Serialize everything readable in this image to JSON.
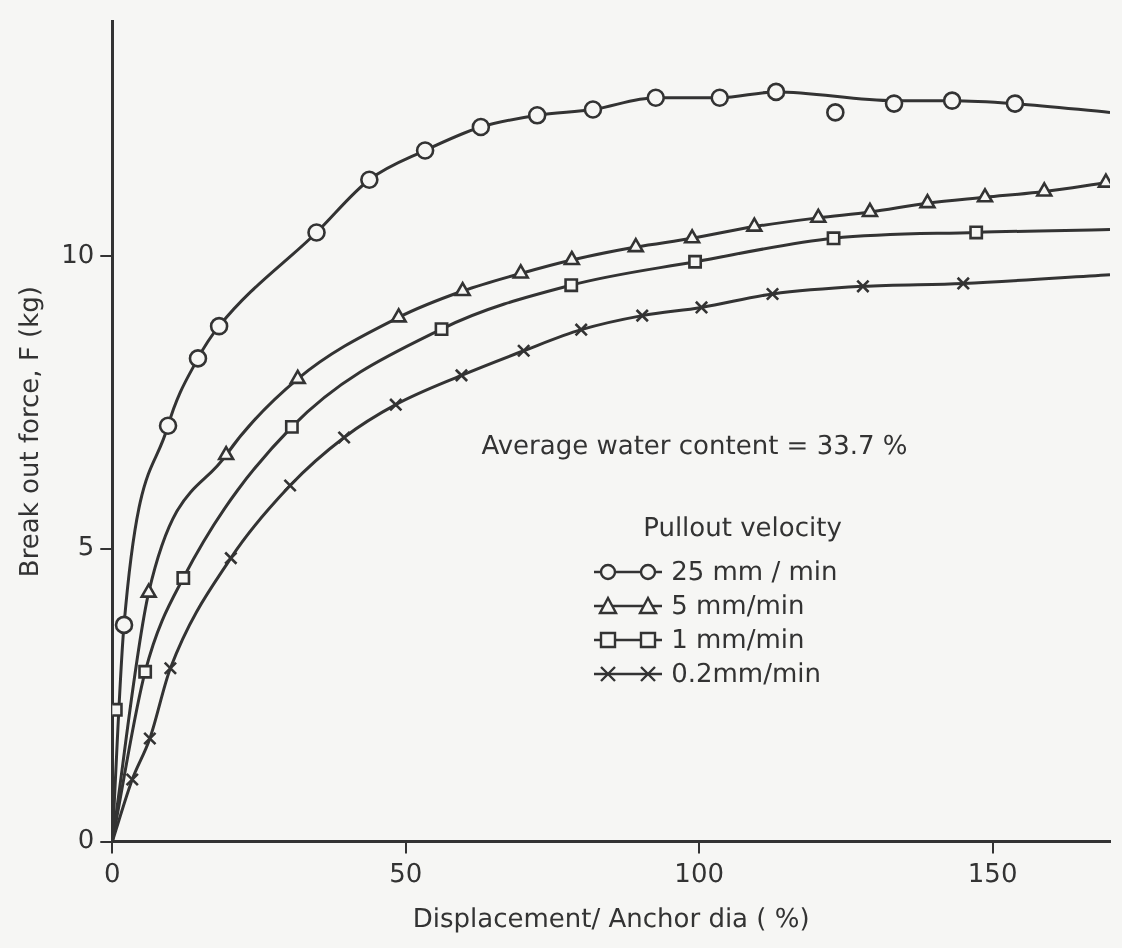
{
  "chart_data": {
    "type": "scatter",
    "xlabel": "Displacement/ Anchor dia ( %)",
    "ylabel": "Break out force, F (kg)",
    "legend_title": "Pullout velocity",
    "annotations": [
      "Average water content = 33.7 %"
    ],
    "legend": "bottom right",
    "xlim": [
      0,
      170
    ],
    "ylim": [
      0,
      14
    ],
    "xticks": [
      0,
      50,
      100,
      150
    ],
    "yticks": [
      0,
      5,
      10
    ],
    "series": [
      {
        "name": "25 mm / min",
        "type": "scatter",
        "marker": "circle",
        "color": "#333333",
        "x": [
          2,
          9.5,
          14.6,
          18.2,
          34.8,
          43.8,
          53.3,
          62.8,
          72.4,
          81.9,
          92.6,
          103.5,
          113.1,
          123.2,
          133.2,
          143.1,
          153.8
        ],
        "values": [
          3.7,
          7.1,
          8.25,
          8.8,
          10.4,
          11.3,
          11.8,
          12.2,
          12.4,
          12.5,
          12.7,
          12.7,
          12.8,
          12.45,
          12.6,
          12.65,
          12.6
        ]
      },
      {
        "name": "5 mm/min",
        "type": "scatter",
        "marker": "triangle",
        "color": "#333333",
        "x": [
          6.2,
          19.4,
          31.6,
          48.8,
          59.7,
          69.6,
          78.3,
          89.2,
          98.8,
          109.4,
          120.3,
          129.1,
          138.9,
          148.7,
          158.8,
          169.3
        ],
        "values": [
          4.25,
          6.6,
          7.9,
          8.95,
          9.4,
          9.7,
          9.93,
          10.15,
          10.3,
          10.5,
          10.65,
          10.75,
          10.9,
          11.0,
          11.1,
          11.25
        ]
      },
      {
        "name": "1 mm/min",
        "type": "scatter",
        "marker": "square",
        "color": "#333333",
        "x": [
          0.6,
          5.6,
          12.1,
          30.6,
          56.1,
          78.2,
          99.3,
          122.9,
          147.2
        ],
        "values": [
          2.25,
          2.9,
          4.5,
          7.08,
          8.75,
          9.5,
          9.9,
          10.3,
          10.4
        ]
      },
      {
        "name": "0.2mm/min",
        "type": "scatter",
        "marker": "cross",
        "color": "#333333",
        "x": [
          3.4,
          6.4,
          9.9,
          20.2,
          30.3,
          39.5,
          48.3,
          59.5,
          70.1,
          79.9,
          90.3,
          100.4,
          112.5,
          127.9,
          145
        ],
        "values": [
          1.06,
          1.76,
          2.96,
          4.84,
          6.08,
          6.9,
          7.46,
          7.96,
          8.38,
          8.74,
          8.98,
          9.12,
          9.35,
          9.48,
          9.53
        ]
      },
      {
        "type": "line",
        "marker": "none",
        "color": "#333333",
        "x": [
          0,
          2,
          9.5,
          14.6,
          18.2,
          34.8,
          43.8,
          53.3,
          62.8,
          72.4,
          81.9,
          92.6,
          103.5,
          113.1,
          133.2,
          143.1,
          153.8,
          170
        ],
        "values": [
          0,
          3.7,
          7.1,
          8.25,
          8.8,
          10.4,
          11.3,
          11.8,
          12.2,
          12.4,
          12.5,
          12.7,
          12.7,
          12.8,
          12.65,
          12.65,
          12.6,
          12.45
        ]
      },
      {
        "type": "line",
        "marker": "none",
        "color": "#333333",
        "x": [
          0,
          6.2,
          19.4,
          31.6,
          48.8,
          59.7,
          69.6,
          78.3,
          89.2,
          98.8,
          109.4,
          120.3,
          129.1,
          138.9,
          148.7,
          158.8,
          169.3
        ],
        "values": [
          0,
          4.25,
          6.6,
          7.9,
          8.95,
          9.4,
          9.7,
          9.93,
          10.15,
          10.3,
          10.5,
          10.65,
          10.75,
          10.9,
          11.0,
          11.1,
          11.25
        ]
      },
      {
        "type": "line",
        "marker": "none",
        "color": "#333333",
        "x": [
          0,
          5.6,
          12.1,
          30.6,
          56.1,
          78.2,
          99.3,
          122.9,
          147.2,
          170
        ],
        "values": [
          0,
          2.9,
          4.5,
          7.08,
          8.75,
          9.5,
          9.9,
          10.3,
          10.4,
          10.45
        ]
      },
      {
        "type": "line",
        "marker": "none",
        "color": "#333333",
        "x": [
          0,
          3.4,
          6.4,
          9.9,
          20.2,
          30.3,
          39.5,
          48.3,
          59.5,
          70.1,
          79.9,
          90.3,
          100.4,
          112.5,
          127.9,
          145,
          170
        ],
        "values": [
          0,
          1.06,
          1.76,
          2.96,
          4.84,
          6.08,
          6.9,
          7.46,
          7.96,
          8.38,
          8.74,
          8.98,
          9.12,
          9.35,
          9.48,
          9.53,
          9.68
        ]
      }
    ]
  }
}
